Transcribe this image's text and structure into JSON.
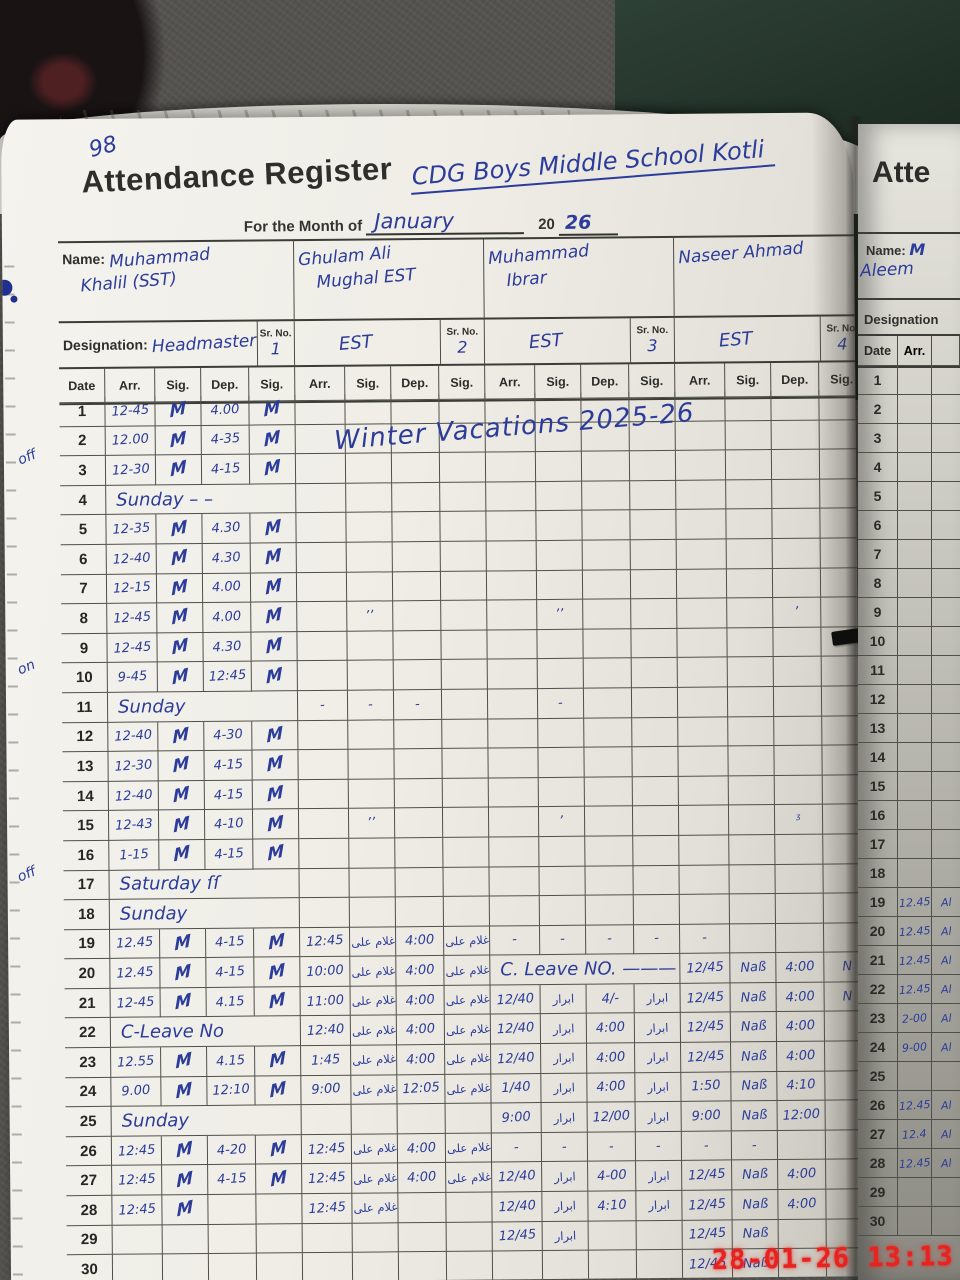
{
  "timestamp": "28-01-26 13:13",
  "register": {
    "page_number": "98",
    "title": "Attendance Register",
    "school": "CDG Boys Middle School Kotli",
    "month_label": "For the Month of",
    "month": "January",
    "year_prefix": "20",
    "year": "26",
    "labels": {
      "name": "Name:",
      "designation": "Designation:",
      "sr_no": "Sr. No."
    },
    "teachers": [
      {
        "name_line1": "Muhammad",
        "name_line2": "Khalil (SST)",
        "designation": "Headmaster",
        "sr": "1"
      },
      {
        "name_line1": "Ghulam Ali",
        "name_line2": "Mughal EST",
        "grade": "EST",
        "sr": "2"
      },
      {
        "name_line1": "Muhammad",
        "name_line2": "Ibrar",
        "grade": "EST",
        "sr": "3"
      },
      {
        "name_line1": "Naseer Ahmad",
        "name_line2": "",
        "grade": "EST",
        "sr": "4"
      }
    ],
    "col_headers": [
      "Date",
      "Arr.",
      "Sig.",
      "Dep.",
      "Sig."
    ],
    "vacation_note": "Winter Vacations   2025-26",
    "margin_notes": [
      {
        "row": 3,
        "text": "off"
      },
      {
        "row": 10,
        "text": "on"
      },
      {
        "row": 17,
        "text": "off"
      }
    ],
    "rows": [
      {
        "date": "1",
        "t1": [
          "12-45",
          "M",
          "4.00",
          "M"
        ]
      },
      {
        "date": "2",
        "t1": [
          "12.00",
          "M",
          "4-35",
          "M"
        ]
      },
      {
        "date": "3",
        "t1": [
          "12-30",
          "M",
          "4-15",
          "M"
        ]
      },
      {
        "date": "4",
        "t1": {
          "span": "Sunday  –  –"
        }
      },
      {
        "date": "5",
        "t1": [
          "12-35",
          "M",
          "4.30",
          "M"
        ]
      },
      {
        "date": "6",
        "t1": [
          "12-40",
          "M",
          "4.30",
          "M"
        ]
      },
      {
        "date": "7",
        "t1": [
          "12-15",
          "M",
          "4.00",
          "M"
        ]
      },
      {
        "date": "8",
        "t1": [
          "12-45",
          "M",
          "4.00",
          "M"
        ],
        "t2": [
          "",
          "’’",
          "",
          ""
        ],
        "t3": [
          "",
          "’’",
          "",
          ""
        ],
        "t4": [
          "",
          "",
          "’",
          ""
        ]
      },
      {
        "date": "9",
        "t1": [
          "12-45",
          "M",
          "4.30",
          "M"
        ]
      },
      {
        "date": "10",
        "t1": [
          "9-45",
          "M",
          "12:45",
          "M"
        ]
      },
      {
        "date": "11",
        "t1": {
          "span": "Sunday"
        },
        "t2": [
          "-",
          "-",
          "-",
          ""
        ],
        "t3": [
          "",
          "-",
          "",
          ""
        ]
      },
      {
        "date": "12",
        "t1": [
          "12-40",
          "M",
          "4-30",
          "M"
        ]
      },
      {
        "date": "13",
        "t1": [
          "12-30",
          "M",
          "4-15",
          "M"
        ]
      },
      {
        "date": "14",
        "t1": [
          "12-40",
          "M",
          "4-15",
          "M"
        ]
      },
      {
        "date": "15",
        "t1": [
          "12-43",
          "M",
          "4-10",
          "M"
        ],
        "t2": [
          "",
          "’’",
          "",
          ""
        ],
        "t3": [
          "",
          "’",
          "",
          ""
        ],
        "t4": [
          "",
          "",
          "ᶾ",
          ""
        ]
      },
      {
        "date": "16",
        "t1": [
          "1-15",
          "M",
          "4-15",
          "M"
        ]
      },
      {
        "date": "17",
        "t1": {
          "span": "Saturday ſſ"
        }
      },
      {
        "date": "18",
        "t1": {
          "span": "Sunday"
        }
      },
      {
        "date": "19",
        "t1": [
          "12.45",
          "M",
          "4-15",
          "M"
        ],
        "t2": [
          "12:45",
          "غلام علی",
          "4:00",
          "غلام علی"
        ],
        "t3": [
          "-",
          "-",
          "-",
          "-"
        ],
        "t4": [
          "-",
          "",
          "",
          ""
        ]
      },
      {
        "date": "20",
        "t1": [
          "12.45",
          "M",
          "4-15",
          "M"
        ],
        "t2": [
          "10:00",
          "غلام علی",
          "4:00",
          "غلام علی"
        ],
        "t3": {
          "span": "C. Leave   NO. ———"
        },
        "t4": [
          "12/45",
          "Naß",
          "4:00",
          "N"
        ]
      },
      {
        "date": "21",
        "t1": [
          "12-45",
          "M",
          "4.15",
          "M"
        ],
        "t2": [
          "11:00",
          "غلام علی",
          "4:00",
          "غلام علی"
        ],
        "t3": [
          "12/40",
          "ابرار",
          "4/-",
          "ابرار"
        ],
        "t4": [
          "12/45",
          "Naß",
          "4:00",
          "N"
        ]
      },
      {
        "date": "22",
        "t1": {
          "span": "C-Leave No"
        },
        "t2": [
          "12:40",
          "غلام علی",
          "4:00",
          "غلام علی"
        ],
        "t3": [
          "12/40",
          "ابرار",
          "4:00",
          "ابرار"
        ],
        "t4": [
          "12/45",
          "Naß",
          "4:00",
          ""
        ]
      },
      {
        "date": "23",
        "t1": [
          "12.55",
          "M",
          "4.15",
          "M"
        ],
        "t2": [
          "1:45",
          "غلام علی",
          "4:00",
          "غلام علی"
        ],
        "t3": [
          "12/40",
          "ابرار",
          "4:00",
          "ابرار"
        ],
        "t4": [
          "12/45",
          "Naß",
          "4:00",
          ""
        ]
      },
      {
        "date": "24",
        "t1": [
          "9.00",
          "M",
          "12:10",
          "M"
        ],
        "t2": [
          "9:00",
          "غلام علی",
          "12:05",
          "غلام علی"
        ],
        "t3": [
          "1/40",
          "ابرار",
          "4:00",
          "ابرار"
        ],
        "t4": [
          "1:50",
          "Naß",
          "4:10",
          ""
        ]
      },
      {
        "date": "25",
        "t1": {
          "span": "Sunday"
        },
        "t3": [
          "9:00",
          "ابرار",
          "12/00",
          "ابرار"
        ],
        "t4": [
          "9:00",
          "Naß",
          "12:00",
          ""
        ]
      },
      {
        "date": "26",
        "t1": [
          "12:45",
          "M",
          "4-20",
          "M"
        ],
        "t2": [
          "12:45",
          "غلام علی",
          "4:00",
          "غلام علی"
        ],
        "t3": [
          "-",
          "-",
          "-",
          "-"
        ],
        "t4": [
          "-",
          "-",
          "",
          ""
        ]
      },
      {
        "date": "27",
        "t1": [
          "12:45",
          "M",
          "4-15",
          "M"
        ],
        "t2": [
          "12:45",
          "غلام علی",
          "4:00",
          "غلام علی"
        ],
        "t3": [
          "12/40",
          "ابرار",
          "4-00",
          "ابرار"
        ],
        "t4": [
          "12/45",
          "Naß",
          "4:00",
          ""
        ]
      },
      {
        "date": "28",
        "t1": [
          "12:45",
          "M",
          "",
          ""
        ],
        "t2": [
          "12:45",
          "غلام علی",
          "",
          ""
        ],
        "t3": [
          "12/40",
          "ابرار",
          "4:10",
          "ابرار"
        ],
        "t4": [
          "12/45",
          "Naß",
          "4:00",
          ""
        ]
      },
      {
        "date": "29",
        "t3": [
          "12/45",
          "ابرار",
          "",
          ""
        ],
        "t4": [
          "12/45",
          "Naß",
          "",
          ""
        ]
      },
      {
        "date": "30",
        "t4": [
          "12/45",
          "Naß",
          "",
          ""
        ]
      }
    ]
  },
  "next_page": {
    "title_partial": "Atte",
    "name_label": "Name:",
    "name_line1": "M",
    "name_line2": "Aleem",
    "designation_label": "Designation",
    "col_date": "Date",
    "col_arr": "Arr.",
    "rows": [
      {
        "date": "1",
        "arr": "",
        "sig": ""
      },
      {
        "date": "2",
        "arr": "",
        "sig": ""
      },
      {
        "date": "3",
        "arr": "",
        "sig": ""
      },
      {
        "date": "4",
        "arr": "",
        "sig": ""
      },
      {
        "date": "5",
        "arr": "",
        "sig": ""
      },
      {
        "date": "6",
        "arr": "",
        "sig": ""
      },
      {
        "date": "7",
        "arr": "",
        "sig": ""
      },
      {
        "date": "8",
        "arr": "",
        "sig": ""
      },
      {
        "date": "9",
        "arr": "",
        "sig": ""
      },
      {
        "date": "10",
        "arr": "",
        "sig": ""
      },
      {
        "date": "11",
        "arr": "",
        "sig": ""
      },
      {
        "date": "12",
        "arr": "",
        "sig": ""
      },
      {
        "date": "13",
        "arr": "",
        "sig": ""
      },
      {
        "date": "14",
        "arr": "",
        "sig": ""
      },
      {
        "date": "15",
        "arr": "",
        "sig": ""
      },
      {
        "date": "16",
        "arr": "",
        "sig": ""
      },
      {
        "date": "17",
        "arr": "",
        "sig": ""
      },
      {
        "date": "18",
        "arr": "",
        "sig": ""
      },
      {
        "date": "19",
        "arr": "12.45",
        "sig": "Al"
      },
      {
        "date": "20",
        "arr": "12.45",
        "sig": "Al"
      },
      {
        "date": "21",
        "arr": "12.45",
        "sig": "Al"
      },
      {
        "date": "22",
        "arr": "12.45",
        "sig": "Al"
      },
      {
        "date": "23",
        "arr": "2-00",
        "sig": "Al"
      },
      {
        "date": "24",
        "arr": "9-00",
        "sig": "Al"
      },
      {
        "date": "25",
        "arr": "",
        "sig": ""
      },
      {
        "date": "26",
        "arr": "12.45",
        "sig": "Al"
      },
      {
        "date": "27",
        "arr": "12.4",
        "sig": "Al"
      },
      {
        "date": "28",
        "arr": "12.45",
        "sig": "Al"
      },
      {
        "date": "29",
        "arr": "",
        "sig": ""
      },
      {
        "date": "30",
        "arr": "",
        "sig": ""
      }
    ]
  }
}
